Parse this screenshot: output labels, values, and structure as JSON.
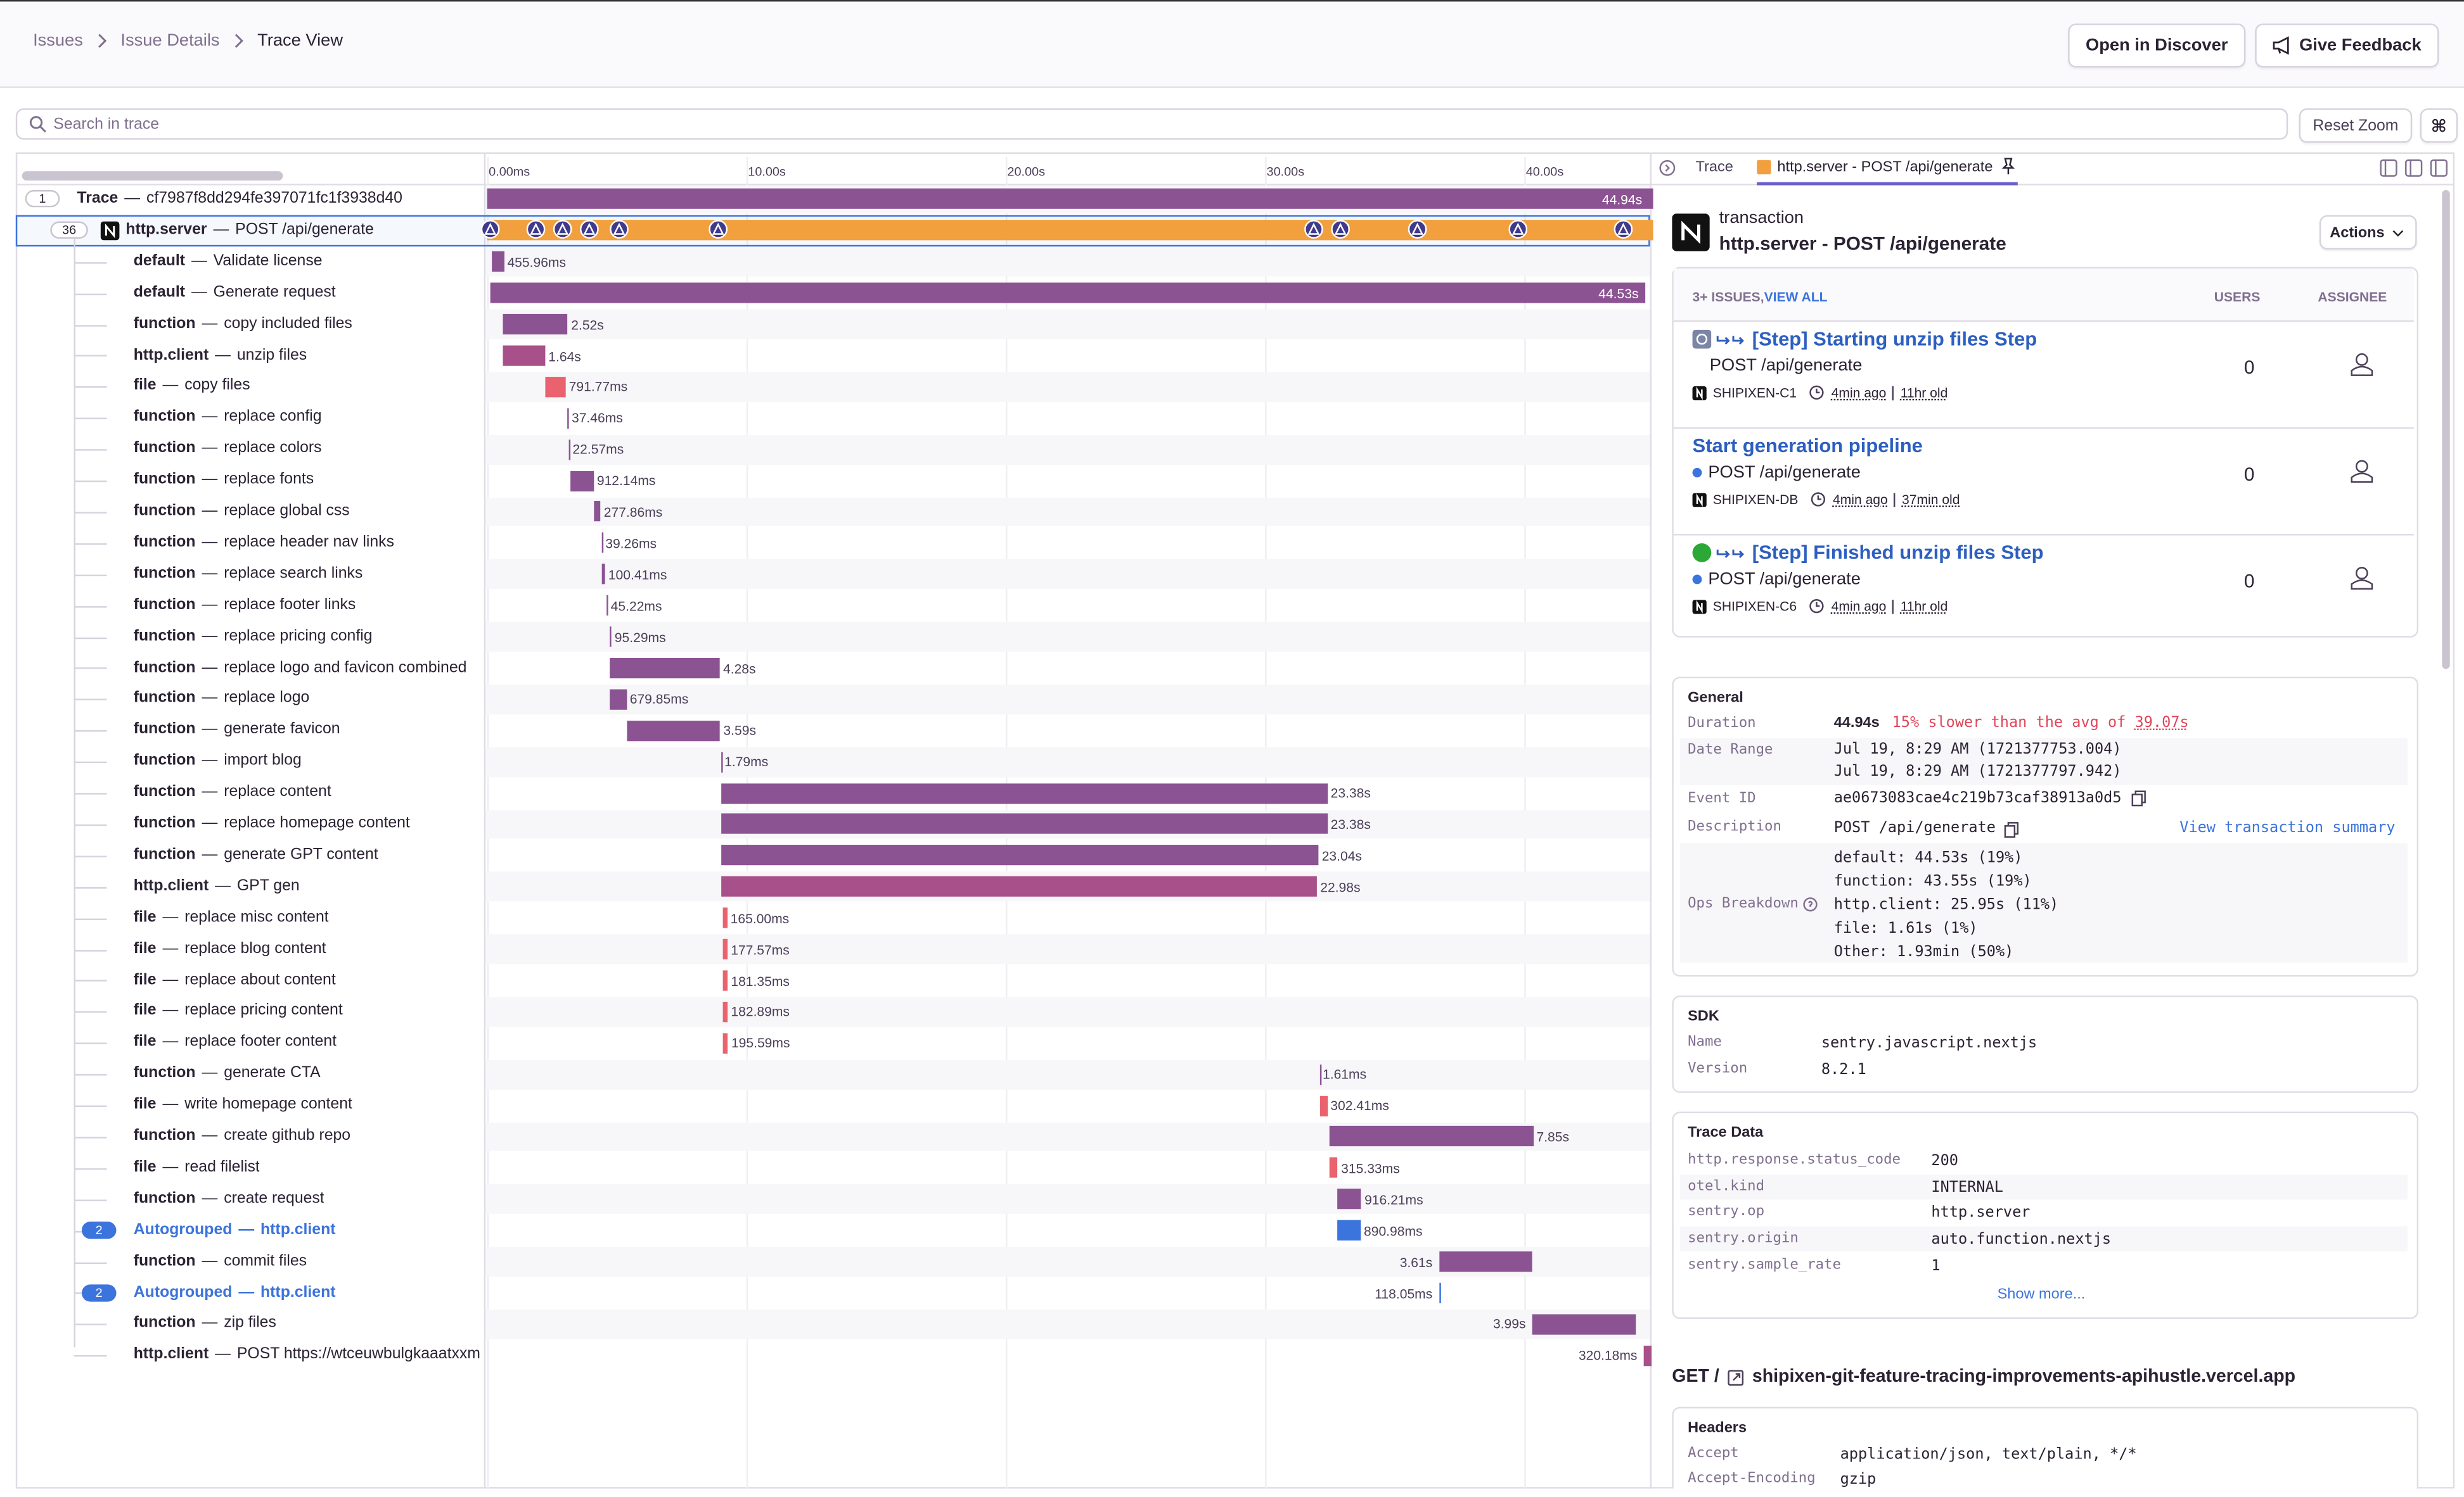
{
  "breadcrumbs": [
    "Issues",
    "Issue Details",
    "Trace View"
  ],
  "buttons": {
    "discover": "Open in Discover",
    "feedback": "Give Feedback"
  },
  "search": {
    "placeholder": "Search in trace",
    "reset": "Reset Zoom",
    "shortcut": "⌘"
  },
  "timeline": {
    "ticks": [
      {
        "value": 0,
        "label": "0.00ms"
      },
      {
        "value": 10,
        "label": "10.00s"
      },
      {
        "value": 20,
        "label": "20.00s"
      },
      {
        "value": 30,
        "label": "30.00s"
      },
      {
        "value": 40,
        "label": "40.00s"
      }
    ]
  },
  "separator": "—",
  "trace": {
    "count": "1",
    "label": "Trace",
    "id": "cf7987f8dd294fe397071fc1f3938d40",
    "start": 0,
    "duration": 44.94,
    "duration_label": "44.94s",
    "color": "#8c5393"
  },
  "root": {
    "count": "36",
    "op": "http.server",
    "desc": "POST /api/generate",
    "start": 0,
    "duration": 44.94,
    "color": "#f2a03d",
    "errors": [
      0.12,
      1.88,
      2.91,
      3.94,
      5.09,
      8.91,
      31.88,
      32.91,
      35.88,
      39.76,
      43.82
    ]
  },
  "spans": [
    {
      "op": "default",
      "desc": "Validate license",
      "start": 0.2,
      "duration": 0.45596,
      "label": "455.96ms",
      "color": "#8c5393"
    },
    {
      "op": "default",
      "desc": "Generate request",
      "start": 0.12,
      "duration": 44.53,
      "label": "44.53s",
      "color": "#8c5393"
    },
    {
      "op": "function",
      "desc": "copy included files",
      "start": 0.6,
      "duration": 2.52,
      "label": "2.52s",
      "color": "#8c5393"
    },
    {
      "op": "http.client",
      "desc": "unzip files",
      "start": 0.6,
      "duration": 1.64,
      "label": "1.64s",
      "color": "#a8508a"
    },
    {
      "op": "file",
      "desc": "copy files",
      "start": 2.24,
      "duration": 0.79177,
      "label": "791.77ms",
      "color": "#e9626e"
    },
    {
      "op": "function",
      "desc": "replace config",
      "start": 3.1,
      "duration": 0.03746,
      "label": "37.46ms",
      "color": "#8c5393"
    },
    {
      "op": "function",
      "desc": "replace colors",
      "start": 3.15,
      "duration": 0.02257,
      "label": "22.57ms",
      "color": "#8c5393"
    },
    {
      "op": "function",
      "desc": "replace fonts",
      "start": 3.2,
      "duration": 0.91214,
      "label": "912.14ms",
      "color": "#8c5393"
    },
    {
      "op": "function",
      "desc": "replace global css",
      "start": 4.1,
      "duration": 0.27786,
      "label": "277.86ms",
      "color": "#8c5393"
    },
    {
      "op": "function",
      "desc": "replace header nav links",
      "start": 4.4,
      "duration": 0.03926,
      "label": "39.26ms",
      "color": "#8c5393"
    },
    {
      "op": "function",
      "desc": "replace search links",
      "start": 4.45,
      "duration": 0.10041,
      "label": "100.41ms",
      "color": "#8c5393"
    },
    {
      "op": "function",
      "desc": "replace footer links",
      "start": 4.6,
      "duration": 0.04522,
      "label": "45.22ms",
      "color": "#8c5393"
    },
    {
      "op": "function",
      "desc": "replace pricing config",
      "start": 4.7,
      "duration": 0.09529,
      "label": "95.29ms",
      "color": "#8c5393"
    },
    {
      "op": "function",
      "desc": "replace logo and favicon combined",
      "start": 4.7,
      "duration": 4.28,
      "label": "4.28s",
      "color": "#8c5393"
    },
    {
      "op": "function",
      "desc": "replace logo",
      "start": 4.7,
      "duration": 0.67985,
      "label": "679.85ms",
      "color": "#8c5393"
    },
    {
      "op": "function",
      "desc": "generate favicon",
      "start": 5.4,
      "duration": 3.59,
      "label": "3.59s",
      "color": "#8c5393"
    },
    {
      "op": "function",
      "desc": "import blog",
      "start": 9.03,
      "duration": 0.00179,
      "label": "1.79ms",
      "color": "#8c5393"
    },
    {
      "op": "function",
      "desc": "replace content",
      "start": 9.03,
      "duration": 23.38,
      "label": "23.38s",
      "color": "#8c5393"
    },
    {
      "op": "function",
      "desc": "replace homepage content",
      "start": 9.03,
      "duration": 23.38,
      "label": "23.38s",
      "color": "#8c5393"
    },
    {
      "op": "function",
      "desc": "generate GPT content",
      "start": 9.03,
      "duration": 23.04,
      "label": "23.04s",
      "color": "#8c5393"
    },
    {
      "op": "http.client",
      "desc": "GPT gen",
      "start": 9.03,
      "duration": 22.98,
      "label": "22.98s",
      "color": "#a8508a"
    },
    {
      "op": "file",
      "desc": "replace misc content",
      "start": 9.1,
      "duration": 0.165,
      "label": "165.00ms",
      "color": "#e9626e"
    },
    {
      "op": "file",
      "desc": "replace blog content",
      "start": 9.1,
      "duration": 0.17757,
      "label": "177.57ms",
      "color": "#e9626e"
    },
    {
      "op": "file",
      "desc": "replace about content",
      "start": 9.1,
      "duration": 0.18135,
      "label": "181.35ms",
      "color": "#e9626e"
    },
    {
      "op": "file",
      "desc": "replace pricing content",
      "start": 9.1,
      "duration": 0.18289,
      "label": "182.89ms",
      "color": "#e9626e"
    },
    {
      "op": "file",
      "desc": "replace footer content",
      "start": 9.1,
      "duration": 0.19559,
      "label": "195.59ms",
      "color": "#e9626e"
    },
    {
      "op": "function",
      "desc": "generate CTA",
      "start": 32.1,
      "duration": 0.00161,
      "label": "1.61ms",
      "color": "#8c5393"
    },
    {
      "op": "file",
      "desc": "write homepage content",
      "start": 32.1,
      "duration": 0.30241,
      "label": "302.41ms",
      "color": "#e9626e"
    },
    {
      "op": "function",
      "desc": "create github repo",
      "start": 32.5,
      "duration": 7.85,
      "label": "7.85s",
      "color": "#8c5393"
    },
    {
      "op": "file",
      "desc": "read filelist",
      "start": 32.5,
      "duration": 0.31533,
      "label": "315.33ms",
      "color": "#e9626e"
    },
    {
      "op": "function",
      "desc": "create request",
      "start": 32.8,
      "duration": 0.91621,
      "label": "916.21ms",
      "color": "#8c5393"
    },
    {
      "op": "Autogrouped",
      "desc": "http.client",
      "count": "2",
      "start": 32.8,
      "duration": 0.89098,
      "label": "890.98ms",
      "color": "#3c74dd"
    },
    {
      "op": "function",
      "desc": "commit files",
      "start": 36.7,
      "duration": 3.61,
      "label": "3.61s",
      "color": "#8c5393"
    },
    {
      "op": "Autogrouped",
      "desc": "http.client",
      "count": "2",
      "start": 36.7,
      "duration": 0.11805,
      "label": "118.05ms",
      "color": "#3c74dd"
    },
    {
      "op": "function",
      "desc": "zip files",
      "start": 40.3,
      "duration": 3.99,
      "label": "3.99s",
      "color": "#8c5393"
    },
    {
      "op": "http.client",
      "desc": "POST https://wtceuwbulgkaaatxxm",
      "start": 44.6,
      "duration": 0.32018,
      "label": "320.18ms",
      "color": "#a8508a"
    }
  ],
  "panel": {
    "tabs": [
      "Trace",
      "http.server - POST /api/generate"
    ],
    "kind": "transaction",
    "name": "http.server - POST /api/generate",
    "actions": "Actions",
    "issues_header": {
      "count": "3+ ISSUES,",
      "view_all": "VIEW ALL",
      "users": "USERS",
      "assignee": "ASSIGNEE"
    },
    "issues": [
      {
        "title": "[Step] Starting unzip files Step",
        "subtitle": "POST /api/generate",
        "project": "SHIPIXEN-C1",
        "seen": "4min ago",
        "age": "11hr old",
        "users": "0"
      },
      {
        "title": "Start generation pipeline",
        "subtitle": "POST /api/generate",
        "project": "SHIPIXEN-DB",
        "seen": "4min ago",
        "age": "37min old",
        "users": "0"
      },
      {
        "title": "[Step] Finished unzip files Step",
        "subtitle": "POST /api/generate",
        "project": "SHIPIXEN-C6",
        "seen": "4min ago",
        "age": "11hr old",
        "users": "0"
      }
    ],
    "general": {
      "title": "General",
      "duration_key": "Duration",
      "duration": "44.94s",
      "slower": "15% slower than the avg of ",
      "avg": "39.07s",
      "range_key": "Date Range",
      "range": [
        "Jul 19, 8:29 AM (1721377753.004)",
        "Jul 19, 8:29 AM (1721377797.942)"
      ],
      "event_key": "Event ID",
      "event": "ae0673083cae4c219b73caf38913a0d5",
      "desc_key": "Description",
      "desc": "POST /api/generate",
      "summary": "View transaction summary",
      "ops_key": "Ops Breakdown",
      "ops": [
        "default: 44.53s (19%)",
        "function: 43.55s (19%)",
        "http.client: 25.95s (11%)",
        "file: 1.61s (1%)",
        "Other: 1.93min (50%)"
      ]
    },
    "sdk": {
      "title": "SDK",
      "rows": [
        [
          "Name",
          "sentry.javascript.nextjs"
        ],
        [
          "Version",
          "8.2.1"
        ]
      ]
    },
    "trace_data": {
      "title": "Trace Data",
      "rows": [
        [
          "http.response.status_code",
          "200"
        ],
        [
          "otel.kind",
          "INTERNAL"
        ],
        [
          "sentry.op",
          "http.server"
        ],
        [
          "sentry.origin",
          "auto.function.nextjs"
        ],
        [
          "sentry.sample_rate",
          "1"
        ]
      ],
      "more": "Show more..."
    },
    "request": {
      "method": "GET /",
      "url": "shipixen-git-feature-tracing-improvements-apihustle.vercel.app"
    },
    "headers": {
      "title": "Headers",
      "rows": [
        [
          "Accept",
          "application/json, text/plain, */*"
        ],
        [
          "Accept-Encoding",
          "gzip"
        ]
      ]
    }
  }
}
